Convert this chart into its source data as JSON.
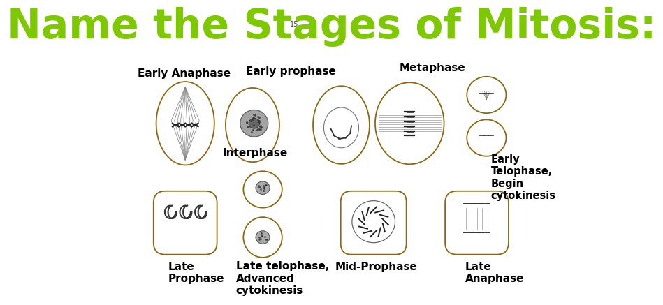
{
  "title": "Name the Stages¹⁵ of Mitosis:",
  "title_plain": "Name the Stages of Mitosis:",
  "title_color": "#7ec800",
  "title_fontsize": 42,
  "bg_color": "#ffffff",
  "cell_color": "#8B6914",
  "text_color": "#000000",
  "labels": {
    "early_anaphase": "Early Anaphase",
    "early_prophase": "Early prophase",
    "metaphase": "Metaphase",
    "interphase": "Interphase",
    "early_telophase": "Early\nTelophase,\nBegin\ncytokinesis",
    "late_prophase": "Late\nProphase",
    "late_telophase": "Late telophase,\nAdvanced\ncytokinesis",
    "mid_prophase": "Mid-Prophase",
    "late_anaphase": "Late\nAnaphase"
  },
  "label_fontsize": 11,
  "num_slide": "15"
}
